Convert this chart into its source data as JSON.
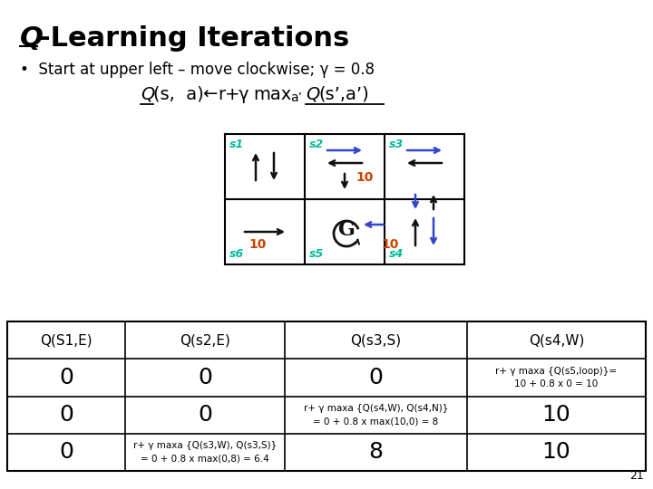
{
  "title_Q": "Q",
  "title_rest": "-Learning Iterations",
  "bullet": "•  Start at upper left – move clockwise; γ = 0.8",
  "bg_color": "#ffffff",
  "state_color": "#00bb99",
  "reward_color": "#cc4400",
  "arrow_blue": "#3344cc",
  "arrow_black": "#111111",
  "table_headers": [
    "Q(S1,E)",
    "Q(s2,E)",
    "Q(s3,S)",
    "Q(s4,W)"
  ],
  "table_row1": [
    "0",
    "0",
    "0",
    "r+ γ maxa {Q(s5,loop)}=\n10 + 0.8 x 0 = 10"
  ],
  "table_row2": [
    "0",
    "0",
    "r+ γ maxa {Q(s4,W), Q(s4,N)}\n= 0 + 0.8 x max(10,0) = 8",
    "10"
  ],
  "table_row3": [
    "0",
    "r+ γ maxa {Q(s3,W), Q(s3,S)}\n= 0 + 0.8 x max(0,8) = 6.4",
    "8",
    "10"
  ],
  "page_num": "21"
}
